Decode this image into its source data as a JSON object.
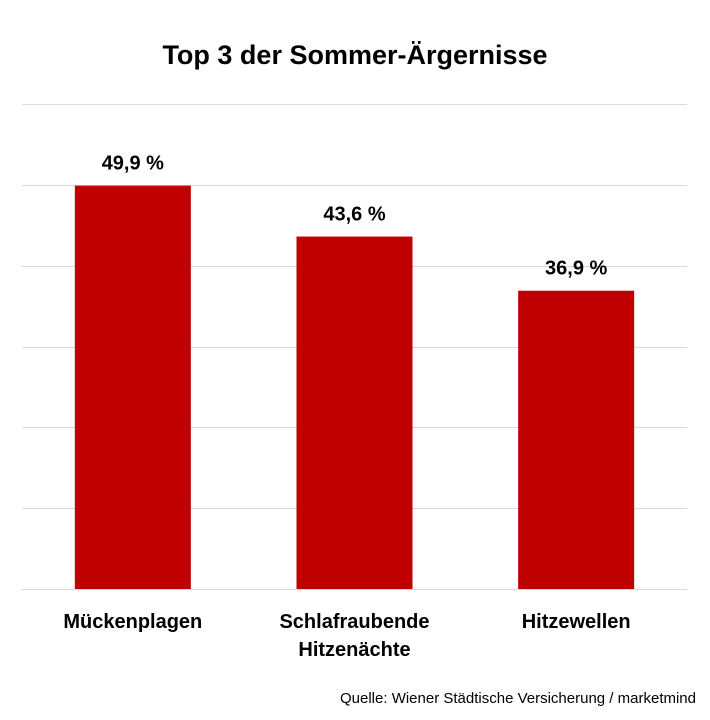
{
  "chart_data": {
    "type": "bar",
    "title": "Top 3 der Sommer-Ärgernisse",
    "categories": [
      [
        "Mückenplagen"
      ],
      [
        "Schlafraubende",
        "Hitzenächte"
      ],
      [
        "Hitzewellen"
      ]
    ],
    "values": [
      49.9,
      43.6,
      36.9
    ],
    "value_labels": [
      "49,9 %",
      "43,6 %",
      "36,9 %"
    ],
    "ylim": [
      0,
      60
    ],
    "grid": true,
    "bar_color": "#C00000",
    "gridline_color": "#D9D9D9",
    "source": "Quelle: Wiener Städtische Versicherung / marketmind"
  }
}
